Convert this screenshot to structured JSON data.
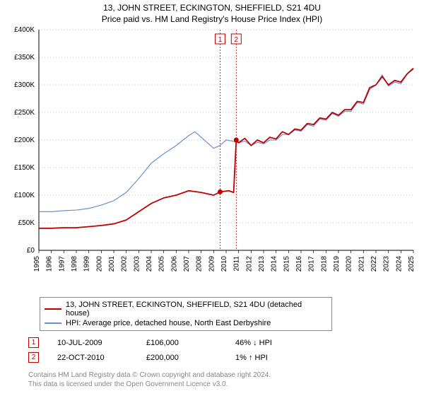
{
  "title_line1": "13, JOHN STREET, ECKINGTON, SHEFFIELD, S21 4DU",
  "title_line2": "Price paid vs. HM Land Registry's House Price Index (HPI)",
  "chart": {
    "background_color": "#ffffff",
    "axis_color": "#000000",
    "grid_color": "#b0b0b0",
    "xlabels": [
      "1995",
      "1996",
      "1997",
      "1998",
      "1999",
      "2000",
      "2001",
      "2002",
      "2003",
      "2004",
      "2005",
      "2006",
      "2007",
      "2008",
      "2009",
      "2010",
      "2011",
      "2012",
      "2013",
      "2014",
      "2015",
      "2016",
      "2017",
      "2018",
      "2019",
      "2020",
      "2021",
      "2022",
      "2023",
      "2024",
      "2025"
    ],
    "ylabels": [
      "£0",
      "£50K",
      "£100K",
      "£150K",
      "£200K",
      "£250K",
      "£300K",
      "£350K",
      "£400K"
    ],
    "ylim": [
      0,
      400000
    ],
    "x_years": [
      1995,
      2025
    ],
    "vlines": {
      "color": "#c00000",
      "dash": "2,2",
      "positions_year": [
        2009.52,
        2010.81
      ],
      "labels": [
        "1",
        "2"
      ]
    },
    "series": [
      {
        "name": "price_paid",
        "color": "#c00000",
        "width": 1.8,
        "points": [
          [
            1995,
            40000
          ],
          [
            1996,
            40000
          ],
          [
            1997,
            41000
          ],
          [
            1998,
            41000
          ],
          [
            1999,
            43000
          ],
          [
            2000,
            45000
          ],
          [
            2001,
            48000
          ],
          [
            2002,
            55000
          ],
          [
            2003,
            70000
          ],
          [
            2004,
            85000
          ],
          [
            2005,
            95000
          ],
          [
            2006,
            100000
          ],
          [
            2007,
            108000
          ],
          [
            2008,
            105000
          ],
          [
            2009,
            100000
          ],
          [
            2009.52,
            106000
          ],
          [
            2010.2,
            108000
          ],
          [
            2010.6,
            105000
          ],
          [
            2010.81,
            200000
          ],
          [
            2011,
            195000
          ],
          [
            2011.5,
            203000
          ],
          [
            2012,
            190000
          ],
          [
            2012.5,
            200000
          ],
          [
            2013,
            195000
          ],
          [
            2013.5,
            205000
          ],
          [
            2014,
            202000
          ],
          [
            2014.5,
            215000
          ],
          [
            2015,
            210000
          ],
          [
            2015.5,
            220000
          ],
          [
            2016,
            218000
          ],
          [
            2016.5,
            230000
          ],
          [
            2017,
            228000
          ],
          [
            2017.5,
            240000
          ],
          [
            2018,
            238000
          ],
          [
            2018.5,
            250000
          ],
          [
            2019,
            245000
          ],
          [
            2019.5,
            255000
          ],
          [
            2020,
            255000
          ],
          [
            2020.5,
            270000
          ],
          [
            2021,
            268000
          ],
          [
            2021.5,
            295000
          ],
          [
            2022,
            300000
          ],
          [
            2022.5,
            315000
          ],
          [
            2023,
            300000
          ],
          [
            2023.5,
            308000
          ],
          [
            2024,
            305000
          ],
          [
            2024.5,
            320000
          ],
          [
            2025,
            330000
          ]
        ],
        "marker_points": [
          {
            "x": 2009.52,
            "y": 106000
          },
          {
            "x": 2010.81,
            "y": 200000
          }
        ]
      },
      {
        "name": "hpi",
        "color": "#6a8fd0",
        "width": 1.2,
        "points": [
          [
            1995,
            70000
          ],
          [
            1996,
            70000
          ],
          [
            1997,
            72000
          ],
          [
            1998,
            73000
          ],
          [
            1999,
            76000
          ],
          [
            2000,
            82000
          ],
          [
            2001,
            90000
          ],
          [
            2002,
            105000
          ],
          [
            2003,
            130000
          ],
          [
            2004,
            158000
          ],
          [
            2005,
            175000
          ],
          [
            2006,
            190000
          ],
          [
            2007,
            208000
          ],
          [
            2007.5,
            215000
          ],
          [
            2008,
            205000
          ],
          [
            2008.5,
            195000
          ],
          [
            2009,
            185000
          ],
          [
            2009.5,
            190000
          ],
          [
            2010,
            200000
          ],
          [
            2010.5,
            198000
          ],
          [
            2011,
            195000
          ],
          [
            2011.5,
            198000
          ],
          [
            2012,
            190000
          ],
          [
            2012.5,
            196000
          ],
          [
            2013,
            193000
          ],
          [
            2013.5,
            200000
          ],
          [
            2014,
            200000
          ],
          [
            2014.5,
            210000
          ],
          [
            2015,
            210000
          ],
          [
            2015.5,
            218000
          ],
          [
            2016,
            216000
          ],
          [
            2016.5,
            228000
          ],
          [
            2017,
            225000
          ],
          [
            2017.5,
            238000
          ],
          [
            2018,
            236000
          ],
          [
            2018.5,
            248000
          ],
          [
            2019,
            243000
          ],
          [
            2019.5,
            252000
          ],
          [
            2020,
            252000
          ],
          [
            2020.5,
            268000
          ],
          [
            2021,
            265000
          ],
          [
            2021.5,
            292000
          ],
          [
            2022,
            300000
          ],
          [
            2022.5,
            318000
          ],
          [
            2023,
            298000
          ],
          [
            2023.5,
            305000
          ],
          [
            2024,
            302000
          ],
          [
            2024.5,
            320000
          ],
          [
            2025,
            328000
          ]
        ]
      }
    ]
  },
  "legend": {
    "items": [
      {
        "label": "13, JOHN STREET, ECKINGTON, SHEFFIELD, S21 4DU (detached house)",
        "color": "#c00000"
      },
      {
        "label": "HPI: Average price, detached house, North East Derbyshire",
        "color": "#6a8fd0"
      }
    ]
  },
  "markers_table": [
    {
      "num": "1",
      "date": "10-JUL-2009",
      "price": "£106,000",
      "pct": "46% ↓ HPI"
    },
    {
      "num": "2",
      "date": "22-OCT-2010",
      "price": "£200,000",
      "pct": "1% ↑ HPI"
    }
  ],
  "footer_line1": "Contains HM Land Registry data © Crown copyright and database right 2024.",
  "footer_line2": "This data is licensed under the Open Government Licence v3.0."
}
